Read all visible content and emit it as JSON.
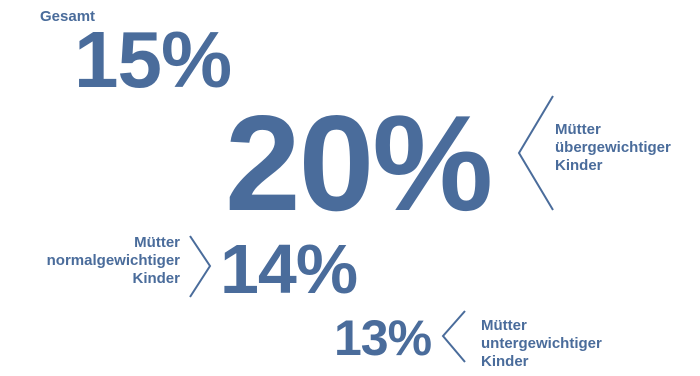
{
  "colors": {
    "primary": "#4a6c9b"
  },
  "chart_data": {
    "type": "table",
    "title": "",
    "categories": [
      "Gesamt",
      "Mütter übergewichtiger Kinder",
      "Mütter normalgewichtiger Kinder",
      "Mütter untergewichtiger Kinder"
    ],
    "values": [
      15,
      20,
      14,
      13
    ],
    "unit": "%",
    "items": [
      {
        "label_lines": [
          "Gesamt"
        ],
        "display": "15%"
      },
      {
        "label_lines": [
          "Mütter",
          "übergewichtiger",
          "Kinder"
        ],
        "display": "20%"
      },
      {
        "label_lines": [
          "Mütter",
          "normalgewichtiger",
          "Kinder"
        ],
        "display": "14%"
      },
      {
        "label_lines": [
          "Mütter",
          "untergewichtiger",
          "Kinder"
        ],
        "display": "13%"
      }
    ]
  }
}
